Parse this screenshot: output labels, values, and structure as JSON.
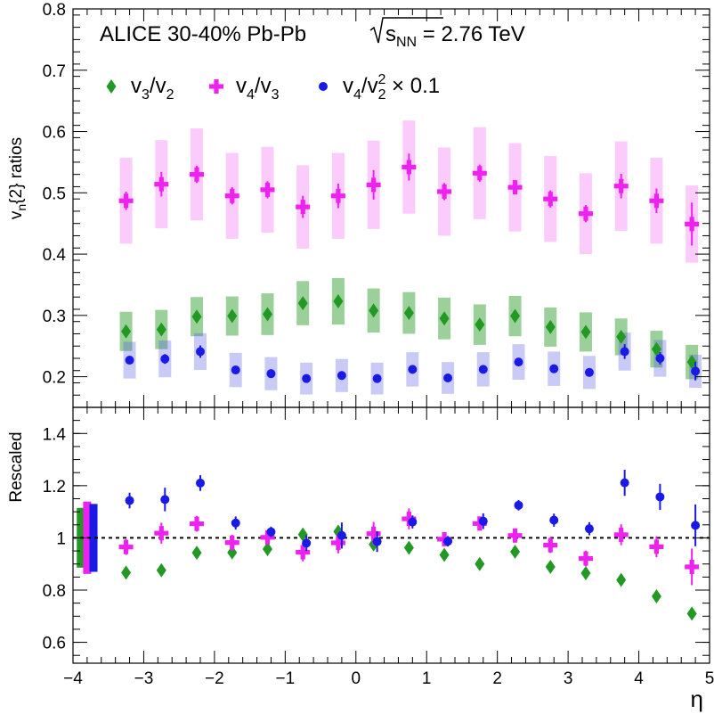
{
  "chart_data": [
    {
      "type": "scatter",
      "panel": "top",
      "title": "ALICE 30-40% Pb-Pb",
      "energy_label": {
        "prefix": "s",
        "sub": "NN",
        "value": "= 2.76 TeV"
      },
      "ylabel": {
        "main": "v",
        "sub": "n",
        "rest": "{2} ratios"
      },
      "xlim": [
        -4,
        5
      ],
      "ylim": [
        0.15,
        0.8
      ],
      "yticks": [
        "0.2",
        "0.3",
        "0.4",
        "0.5",
        "0.6",
        "0.7",
        "0.8"
      ],
      "grid": false,
      "legend_position": "top-left",
      "colors": {
        "v32": "#229922",
        "v43": "#ee22ee",
        "v422": "#1a1ae6"
      },
      "legend": [
        {
          "series": "v32",
          "parts": [
            "v",
            "3",
            "/v",
            "2"
          ]
        },
        {
          "series": "v43",
          "parts": [
            "v",
            "4",
            "/v",
            "3"
          ]
        },
        {
          "series": "v422",
          "parts": [
            "v",
            "4",
            "/v",
            "2",
            "2",
            "× 0.1"
          ]
        }
      ],
      "series": [
        {
          "id": "v32",
          "x": [
            -3.25,
            -2.75,
            -2.25,
            -1.75,
            -1.25,
            -0.75,
            -0.25,
            0.25,
            0.75,
            1.25,
            1.75,
            2.25,
            2.75,
            3.25,
            3.75,
            4.25,
            4.75
          ],
          "y": [
            0.274,
            0.277,
            0.298,
            0.299,
            0.302,
            0.32,
            0.323,
            0.308,
            0.304,
            0.295,
            0.285,
            0.299,
            0.281,
            0.273,
            0.265,
            0.245,
            0.224
          ],
          "sys": [
            0.032,
            0.032,
            0.032,
            0.032,
            0.034,
            0.036,
            0.038,
            0.036,
            0.034,
            0.034,
            0.033,
            0.033,
            0.032,
            0.032,
            0.03,
            0.03,
            0.028
          ],
          "stat": [
            0.004,
            0.004,
            0.004,
            0.004,
            0.004,
            0.004,
            0.004,
            0.004,
            0.004,
            0.004,
            0.004,
            0.004,
            0.004,
            0.004,
            0.004,
            0.004,
            0.004
          ]
        },
        {
          "id": "v43",
          "x": [
            -3.25,
            -2.75,
            -2.25,
            -1.75,
            -1.25,
            -0.75,
            -0.25,
            0.25,
            0.75,
            1.25,
            1.75,
            2.25,
            2.75,
            3.25,
            3.75,
            4.25,
            4.75
          ],
          "y": [
            0.487,
            0.514,
            0.53,
            0.495,
            0.505,
            0.477,
            0.495,
            0.513,
            0.542,
            0.502,
            0.532,
            0.509,
            0.49,
            0.466,
            0.511,
            0.487,
            0.449
          ],
          "sys": [
            0.07,
            0.072,
            0.075,
            0.07,
            0.07,
            0.068,
            0.07,
            0.072,
            0.076,
            0.072,
            0.075,
            0.072,
            0.07,
            0.066,
            0.073,
            0.07,
            0.063
          ],
          "stat": [
            0.015,
            0.02,
            0.014,
            0.014,
            0.014,
            0.018,
            0.02,
            0.024,
            0.022,
            0.014,
            0.014,
            0.01,
            0.014,
            0.014,
            0.02,
            0.02,
            0.035
          ]
        },
        {
          "id": "v422",
          "x": [
            -3.2,
            -2.7,
            -2.2,
            -1.7,
            -1.2,
            -0.7,
            -0.2,
            0.3,
            0.8,
            1.3,
            1.8,
            2.3,
            2.8,
            3.3,
            3.8,
            4.3,
            4.8
          ],
          "y": [
            0.227,
            0.229,
            0.241,
            0.211,
            0.205,
            0.197,
            0.202,
            0.197,
            0.212,
            0.198,
            0.212,
            0.224,
            0.213,
            0.207,
            0.241,
            0.23,
            0.209
          ],
          "sys": [
            0.03,
            0.03,
            0.03,
            0.028,
            0.027,
            0.026,
            0.027,
            0.026,
            0.028,
            0.026,
            0.028,
            0.029,
            0.028,
            0.027,
            0.031,
            0.03,
            0.027
          ],
          "stat": [
            0.004,
            0.008,
            0.01,
            0.004,
            0.004,
            0.004,
            0.007,
            0.006,
            0.004,
            0.004,
            0.006,
            0.004,
            0.004,
            0.004,
            0.012,
            0.01,
            0.015
          ]
        }
      ]
    },
    {
      "type": "scatter",
      "panel": "bottom",
      "ylabel": "Rescaled",
      "xlabel": "η",
      "xlim": [
        -4,
        5
      ],
      "ylim": [
        0.52,
        1.5
      ],
      "xticks": [
        "−4",
        "−3",
        "−2",
        "−1",
        "0",
        "1",
        "2",
        "3",
        "4",
        "5"
      ],
      "yticks": [
        "0.6",
        "0.8",
        "1",
        "1.2",
        "1.4"
      ],
      "reference_line": 1,
      "norm_boxes": [
        {
          "series": "v32",
          "x": -3.89,
          "low": 0.886,
          "high": 1.115
        },
        {
          "series": "v43",
          "x": -3.8,
          "low": 0.862,
          "high": 1.139
        },
        {
          "series": "v422",
          "x": -3.71,
          "low": 0.87,
          "high": 1.13
        }
      ],
      "series": [
        {
          "id": "v32",
          "x": [
            -3.25,
            -2.75,
            -2.25,
            -1.75,
            -1.25,
            -0.75,
            -0.25,
            0.25,
            0.75,
            1.25,
            1.75,
            2.25,
            2.75,
            3.25,
            3.75,
            4.25,
            4.75
          ],
          "y": [
            0.867,
            0.876,
            0.943,
            0.944,
            0.957,
            1.013,
            1.024,
            0.975,
            0.962,
            0.935,
            0.9,
            0.947,
            0.889,
            0.865,
            0.839,
            0.776,
            0.71
          ],
          "stat": [
            0.005,
            0.005,
            0.005,
            0.005,
            0.005,
            0.005,
            0.005,
            0.005,
            0.005,
            0.005,
            0.005,
            0.005,
            0.005,
            0.005,
            0.005,
            0.005,
            0.005
          ]
        },
        {
          "id": "v43",
          "x": [
            -3.25,
            -2.75,
            -2.25,
            -1.75,
            -1.25,
            -0.75,
            -0.25,
            0.25,
            0.75,
            1.25,
            1.75,
            2.25,
            2.75,
            3.25,
            3.75,
            4.25,
            4.75
          ],
          "y": [
            0.965,
            1.018,
            1.054,
            0.982,
            1.002,
            0.945,
            0.981,
            1.016,
            1.073,
            0.995,
            1.055,
            1.009,
            0.972,
            0.921,
            1.012,
            0.966,
            0.889
          ],
          "stat": [
            0.03,
            0.04,
            0.03,
            0.03,
            0.025,
            0.035,
            0.04,
            0.045,
            0.04,
            0.025,
            0.025,
            0.02,
            0.03,
            0.03,
            0.04,
            0.04,
            0.07
          ]
        },
        {
          "id": "v422",
          "x": [
            -3.2,
            -2.7,
            -2.2,
            -1.7,
            -1.2,
            -0.7,
            -0.2,
            0.3,
            0.8,
            1.3,
            1.8,
            2.3,
            2.8,
            3.3,
            3.8,
            4.3,
            4.8
          ],
          "y": [
            1.143,
            1.147,
            1.21,
            1.057,
            1.023,
            0.98,
            1.009,
            0.986,
            1.061,
            0.987,
            1.064,
            1.125,
            1.068,
            1.035,
            1.211,
            1.157,
            1.048
          ],
          "stat": [
            0.03,
            0.045,
            0.03,
            0.025,
            0.02,
            0.03,
            0.05,
            0.04,
            0.025,
            0.02,
            0.03,
            0.02,
            0.025,
            0.025,
            0.05,
            0.05,
            0.08
          ]
        }
      ]
    }
  ]
}
